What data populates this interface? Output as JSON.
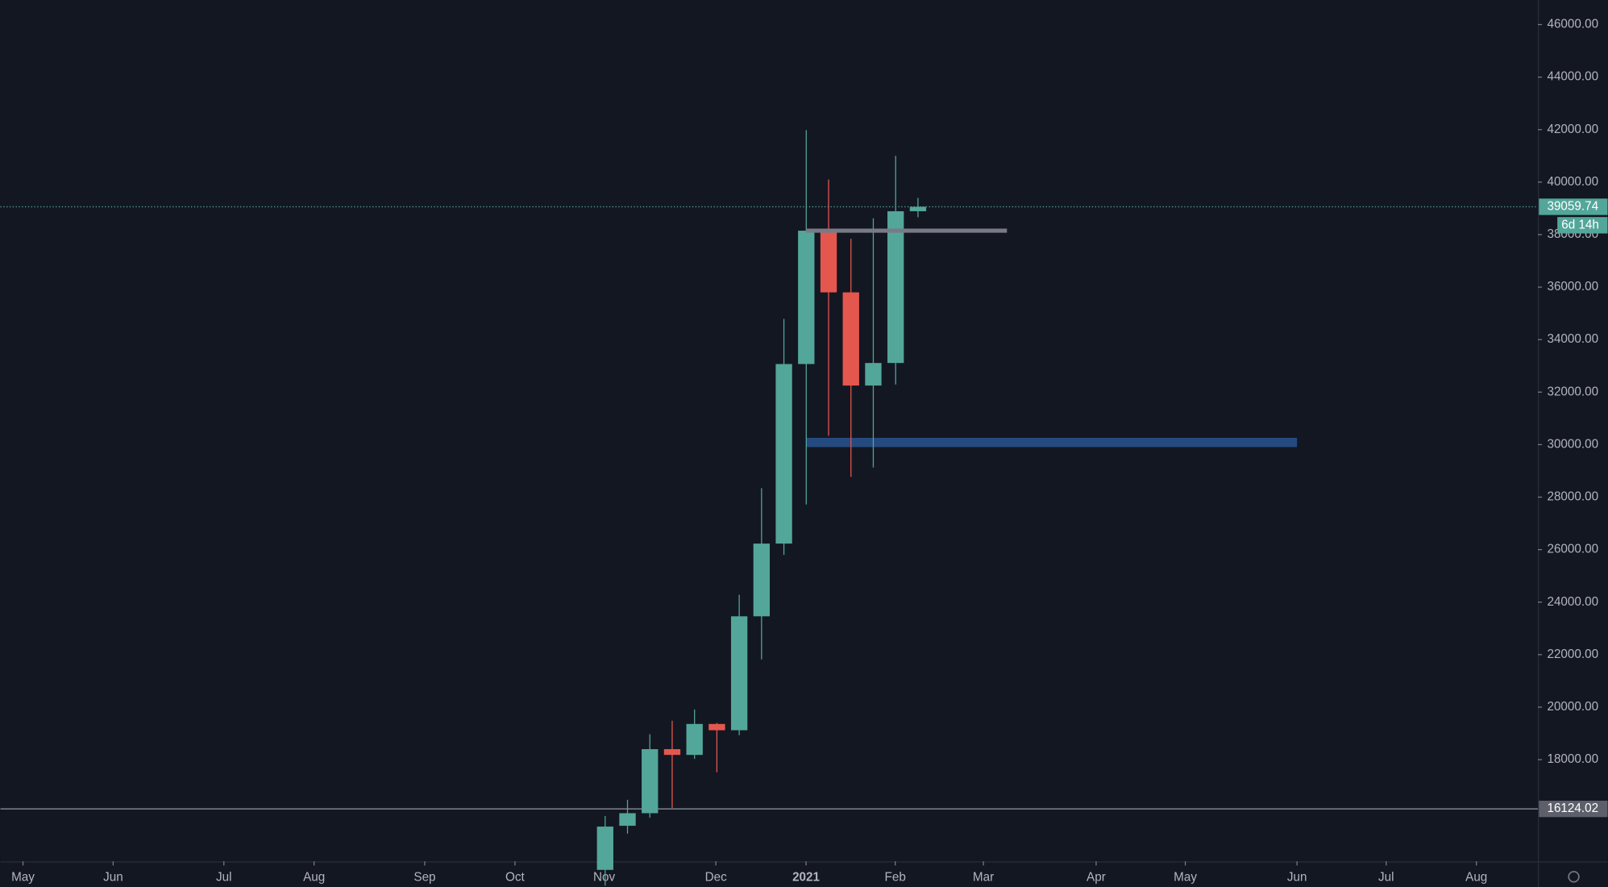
{
  "chart_data": {
    "type": "candlestick",
    "open": [
      13800,
      15480,
      15960,
      18400,
      18180,
      19360,
      19120,
      23460,
      26230,
      33070,
      38150,
      35800,
      32250,
      33110,
      38890
    ],
    "high": [
      15850,
      16470,
      18970,
      19480,
      19910,
      19400,
      24280,
      28340,
      34790,
      41980,
      40100,
      37840,
      38620,
      41000,
      39400
    ],
    "low": [
      13200,
      15180,
      15790,
      16160,
      18030,
      17520,
      18930,
      21820,
      25800,
      27720,
      30340,
      28770,
      29130,
      32290,
      38660
    ],
    "close": [
      15450,
      15960,
      18400,
      18180,
      19360,
      19120,
      23460,
      26230,
      33070,
      38150,
      35800,
      32250,
      33110,
      38890,
      39060
    ],
    "up_color": "#53a69a",
    "down_color": "#e4574f",
    "ylim": [
      14125,
      46937
    ],
    "yticks": [
      {
        "value": 18000,
        "label": "18000.00"
      },
      {
        "value": 20000,
        "label": "20000.00"
      },
      {
        "value": 22000,
        "label": "22000.00"
      },
      {
        "value": 24000,
        "label": "24000.00"
      },
      {
        "value": 26000,
        "label": "26000.00"
      },
      {
        "value": 28000,
        "label": "28000.00"
      },
      {
        "value": 30000,
        "label": "30000.00"
      },
      {
        "value": 32000,
        "label": "32000.00"
      },
      {
        "value": 34000,
        "label": "34000.00"
      },
      {
        "value": 36000,
        "label": "36000.00"
      },
      {
        "value": 38000,
        "label": "38000.00"
      },
      {
        "value": 40000,
        "label": "40000.00"
      },
      {
        "value": 42000,
        "label": "42000.00"
      },
      {
        "value": 44000,
        "label": "44000.00"
      },
      {
        "value": 46000,
        "label": "46000.00"
      }
    ],
    "xtick_labels": [
      "May",
      "Jun",
      "Jul",
      "Aug",
      "Sep",
      "Oct",
      "Nov",
      "Dec",
      "2021",
      "Feb",
      "Mar",
      "Apr",
      "May",
      "Jun",
      "Jul",
      "Aug"
    ],
    "last_price": 39059.74,
    "countdown": "6d 14h",
    "price_line": 16124.02,
    "level": {
      "value": 38150,
      "color": "#787b86"
    },
    "zone": {
      "low": 29907,
      "high": 30259,
      "color": "#244a80"
    }
  }
}
